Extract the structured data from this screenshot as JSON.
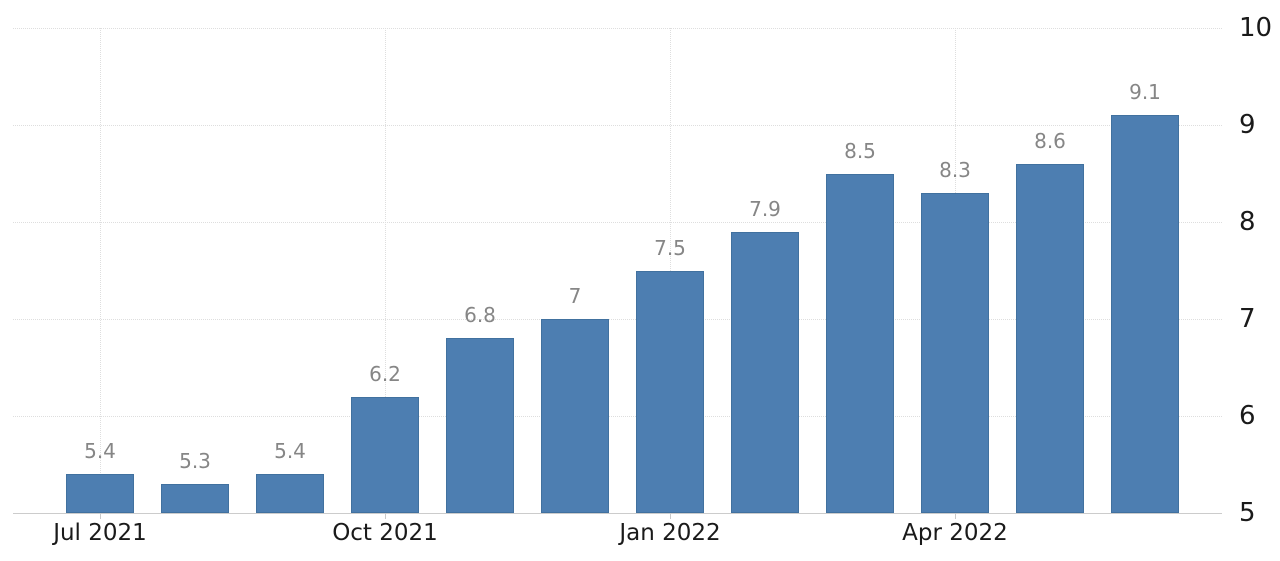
{
  "chart_data": {
    "type": "bar",
    "values": [
      5.4,
      5.3,
      5.4,
      6.2,
      6.8,
      7,
      7.5,
      7.9,
      8.5,
      8.3,
      8.6,
      9.1
    ],
    "value_labels": [
      "5.4",
      "5.3",
      "5.4",
      "6.2",
      "6.8",
      "7",
      "7.5",
      "7.9",
      "8.5",
      "8.3",
      "8.6",
      "9.1"
    ],
    "x_ticks": [
      {
        "index": 0,
        "label": "Jul 2021"
      },
      {
        "index": 3,
        "label": "Oct 2021"
      },
      {
        "index": 6,
        "label": "Jan 2022"
      },
      {
        "index": 9,
        "label": "Apr 2022"
      }
    ],
    "y_ticks": [
      "5",
      "6",
      "7",
      "8",
      "9",
      "10"
    ],
    "ylim": [
      5,
      10
    ],
    "title": "",
    "xlabel": "",
    "ylabel": "",
    "legend": "none",
    "grid": "dotted horizontal lines at integer values, dotted vertical lines at labeled month ticks",
    "y_axis_side": "right",
    "colors": {
      "bar_fill": "#4d7eb1",
      "bar_border": "#41719f",
      "value_label": "#868686",
      "axis_text": "#1a1a1a",
      "gridline": "#dedede",
      "axis_line": "#cccccc"
    }
  }
}
